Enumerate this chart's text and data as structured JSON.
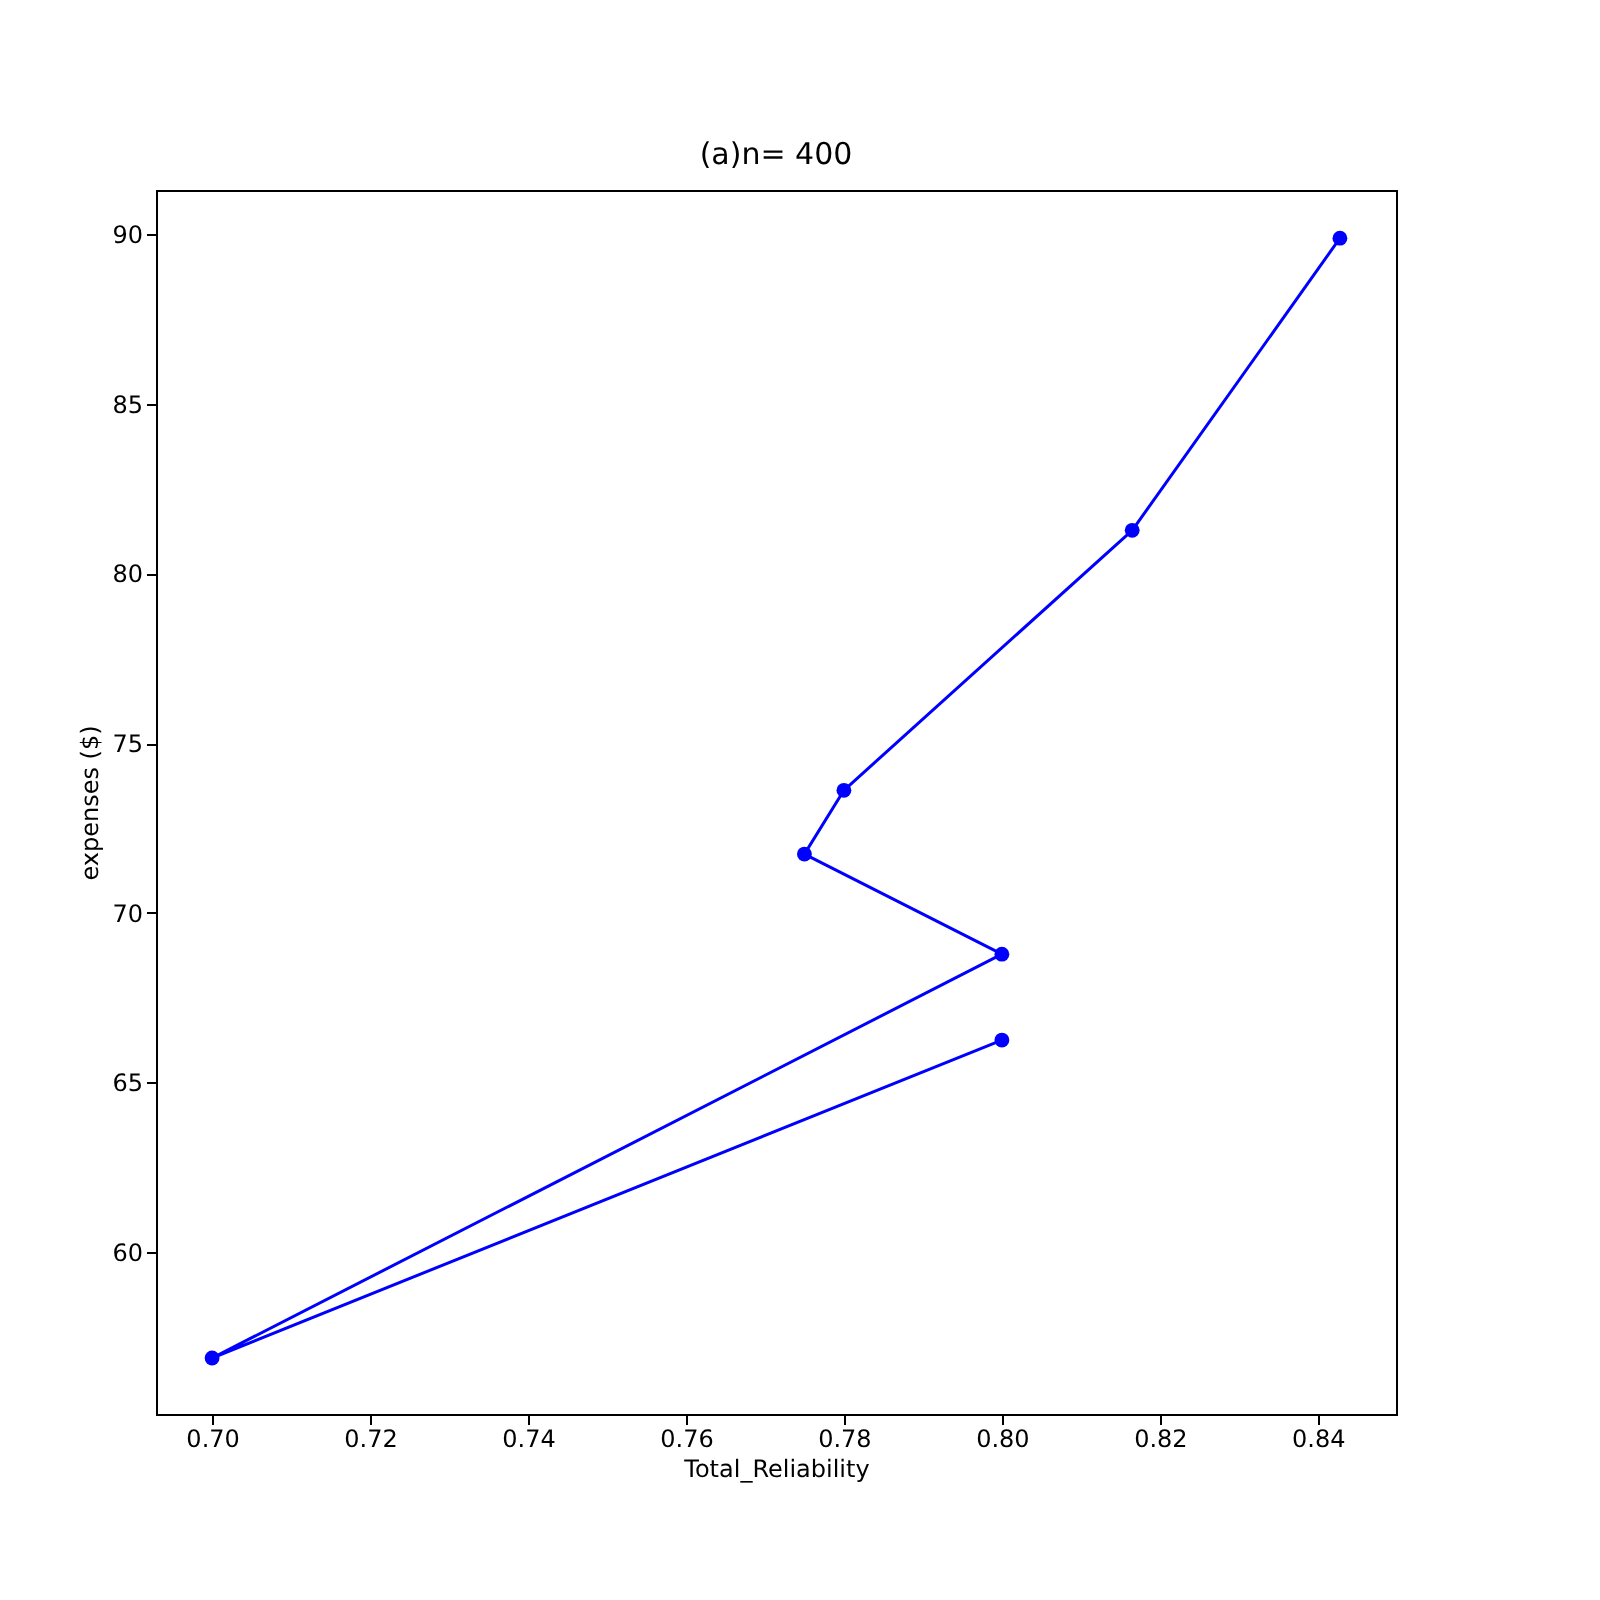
{
  "chart_data": {
    "type": "line",
    "title": "(a)n= 400",
    "xlabel": "Total_Reliability",
    "ylabel": "expenses ($)",
    "x": [
      0.8,
      0.7,
      0.8,
      0.775,
      0.78,
      0.8165,
      0.8428
    ],
    "series": [
      {
        "color": "#0000ff",
        "values": [
          66.25,
          56.88,
          68.78,
          71.73,
          73.61,
          81.27,
          89.88
        ]
      }
    ],
    "xlim": [
      0.6929,
      0.8499
    ],
    "ylim": [
      55.23,
      91.3
    ],
    "xticks": [
      {
        "value": 0.7,
        "label": "0.70"
      },
      {
        "value": 0.72,
        "label": "0.72"
      },
      {
        "value": 0.74,
        "label": "0.74"
      },
      {
        "value": 0.76,
        "label": "0.76"
      },
      {
        "value": 0.78,
        "label": "0.78"
      },
      {
        "value": 0.8,
        "label": "0.80"
      },
      {
        "value": 0.82,
        "label": "0.82"
      },
      {
        "value": 0.84,
        "label": "0.84"
      }
    ],
    "yticks": [
      60,
      65,
      70,
      75,
      80,
      85,
      90
    ],
    "grid": false,
    "marker": "circle",
    "line_style": "solid"
  }
}
